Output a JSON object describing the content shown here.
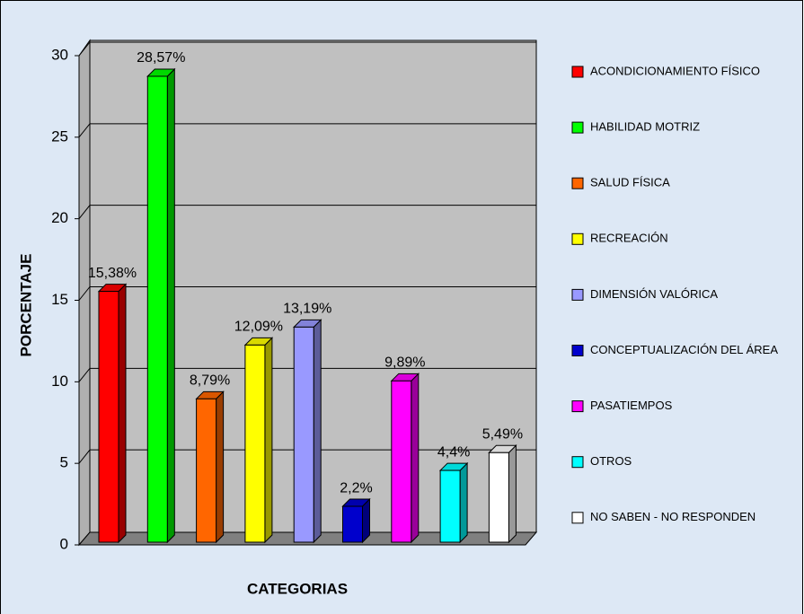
{
  "chart_data": {
    "type": "bar3d",
    "categories": [
      "ACONDICIONAMIENTO FÍSICO",
      "HABILIDAD MOTRIZ",
      "SALUD FÍSICA",
      "RECREACIÓN",
      "DIMENSIÓN VALÓRICA",
      "CONCEPTUALIZACIÓN DEL ÁREA",
      "PASATIEMPOS",
      "OTROS",
      "NO SABEN - NO RESPONDEN"
    ],
    "values": [
      15.38,
      28.57,
      8.79,
      12.09,
      13.19,
      2.2,
      9.89,
      4.4,
      5.49
    ],
    "value_labels": [
      "15,38%",
      "28,57%",
      "8,79%",
      "12,09%",
      "13,19%",
      "2,2%",
      "9,89%",
      "4,4%",
      "5,49%"
    ],
    "colors": [
      "#ff0000",
      "#00ff00",
      "#ff6600",
      "#ffff00",
      "#9999ff",
      "#0000cc",
      "#ff00ff",
      "#00ffff",
      "#ffffff"
    ],
    "ylim": [
      0,
      30
    ],
    "yticks": [
      0,
      5,
      10,
      15,
      20,
      25,
      30
    ],
    "grid": true,
    "y_label": "PORCENTAJE",
    "x_label": "CATEGORIAS",
    "legend": "right"
  }
}
